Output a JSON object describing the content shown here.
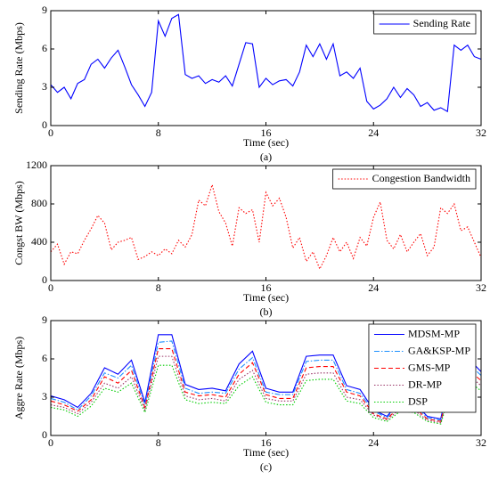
{
  "chart_data": [
    {
      "type": "line",
      "xlabel": "Time (sec)",
      "ylabel": "Sending Rate (Mbps)",
      "caption": "(a)",
      "x": [
        0,
        0.5,
        1,
        1.5,
        2,
        2.5,
        3,
        3.5,
        4,
        4.5,
        5,
        5.5,
        6,
        6.5,
        7,
        7.5,
        8,
        8.5,
        9,
        9.5,
        10,
        10.5,
        11,
        11.5,
        12,
        12.5,
        13,
        13.5,
        14,
        14.5,
        15,
        15.5,
        16,
        16.5,
        17,
        17.5,
        18,
        18.5,
        19,
        19.5,
        20,
        20.5,
        21,
        21.5,
        22,
        22.5,
        23,
        23.5,
        24,
        24.5,
        25,
        25.5,
        26,
        26.5,
        27,
        27.5,
        28,
        28.5,
        29,
        29.5,
        30,
        30.5,
        31,
        31.5,
        32
      ],
      "series": [
        {
          "name": "Sending Rate",
          "color": "#0000ff",
          "style": "solid",
          "values": [
            3.2,
            2.6,
            3.0,
            2.1,
            3.3,
            3.6,
            4.8,
            5.2,
            4.5,
            5.3,
            5.9,
            4.6,
            3.2,
            2.4,
            1.5,
            2.6,
            8.2,
            7.0,
            8.4,
            8.7,
            4.0,
            3.7,
            3.9,
            3.3,
            3.6,
            3.4,
            3.9,
            3.1,
            4.8,
            6.5,
            6.4,
            3.0,
            3.7,
            3.2,
            3.5,
            3.6,
            3.1,
            4.2,
            6.3,
            5.4,
            6.4,
            5.2,
            6.4,
            3.9,
            4.2,
            3.7,
            4.5,
            1.9,
            1.3,
            1.6,
            2.1,
            3.0,
            2.2,
            2.9,
            2.4,
            1.5,
            1.8,
            1.2,
            1.4,
            1.1,
            6.3,
            5.9,
            6.3,
            5.4,
            5.2
          ]
        }
      ],
      "xlim": [
        0,
        32
      ],
      "xticks": [
        0,
        8,
        16,
        24,
        32
      ],
      "ylim": [
        0,
        9
      ],
      "yticks": [
        0,
        3,
        6,
        9
      ],
      "legend": "upper right"
    },
    {
      "type": "line",
      "xlabel": "Time (sec)",
      "ylabel": "Congst BW (Mbps)",
      "caption": "(b)",
      "x": [
        0,
        0.5,
        1,
        1.5,
        2,
        2.5,
        3,
        3.5,
        4,
        4.5,
        5,
        5.5,
        6,
        6.5,
        7,
        7.5,
        8,
        8.5,
        9,
        9.5,
        10,
        10.5,
        11,
        11.5,
        12,
        12.5,
        13,
        13.5,
        14,
        14.5,
        15,
        15.5,
        16,
        16.5,
        17,
        17.5,
        18,
        18.5,
        19,
        19.5,
        20,
        20.5,
        21,
        21.5,
        22,
        22.5,
        23,
        23.5,
        24,
        24.5,
        25,
        25.5,
        26,
        26.5,
        27,
        27.5,
        28,
        28.5,
        29,
        29.5,
        30,
        30.5,
        31,
        31.5,
        32
      ],
      "series": [
        {
          "name": "Congestion Bandwidth",
          "color": "#ff0000",
          "style": "dotted",
          "values": [
            300,
            380,
            170,
            300,
            280,
            420,
            540,
            680,
            600,
            320,
            400,
            420,
            450,
            220,
            250,
            300,
            260,
            330,
            280,
            420,
            350,
            480,
            840,
            780,
            1000,
            720,
            600,
            360,
            760,
            700,
            740,
            400,
            920,
            780,
            860,
            660,
            340,
            450,
            200,
            300,
            120,
            260,
            450,
            300,
            400,
            230,
            450,
            360,
            660,
            820,
            420,
            330,
            480,
            300,
            400,
            490,
            260,
            350,
            760,
            700,
            800,
            520,
            560,
            400,
            240
          ]
        }
      ],
      "xlim": [
        0,
        32
      ],
      "xticks": [
        0,
        8,
        16,
        24,
        32
      ],
      "ylim": [
        0,
        1200
      ],
      "yticks": [
        0,
        400,
        800,
        1200
      ],
      "legend": "upper right"
    },
    {
      "type": "line",
      "xlabel": "Time (sec)",
      "ylabel": "Aggre Rate (Mbps)",
      "caption": "(c)",
      "x": [
        0,
        1,
        2,
        3,
        4,
        5,
        6,
        7,
        8,
        9,
        10,
        11,
        12,
        13,
        14,
        15,
        16,
        17,
        18,
        19,
        20,
        21,
        22,
        23,
        24,
        25,
        26,
        27,
        28,
        29,
        30,
        31,
        32
      ],
      "series": [
        {
          "name": "MDSM-MP",
          "color": "#0000ff",
          "style": "solid",
          "values": [
            3.1,
            2.8,
            2.2,
            3.3,
            5.3,
            4.8,
            5.9,
            2.6,
            7.9,
            7.9,
            4.0,
            3.6,
            3.7,
            3.5,
            5.6,
            6.6,
            3.7,
            3.4,
            3.4,
            6.2,
            6.3,
            6.3,
            3.9,
            3.6,
            2.0,
            1.5,
            2.7,
            2.6,
            1.5,
            1.3,
            6.3,
            6.1,
            5.0
          ]
        },
        {
          "name": "GA&KSP-MP",
          "color": "#1e90ff",
          "style": "dashdot",
          "values": [
            2.9,
            2.6,
            2.0,
            3.1,
            4.9,
            4.5,
            5.5,
            2.4,
            7.3,
            7.4,
            3.7,
            3.3,
            3.4,
            3.3,
            5.2,
            6.1,
            3.4,
            3.2,
            3.2,
            5.8,
            5.9,
            5.9,
            3.6,
            3.3,
            1.9,
            1.4,
            2.5,
            2.4,
            1.4,
            1.2,
            5.9,
            5.7,
            4.7
          ]
        },
        {
          "name": "GMS-MP",
          "color": "#ff0000",
          "style": "dashed",
          "values": [
            2.7,
            2.4,
            1.9,
            2.8,
            4.6,
            4.1,
            5.1,
            2.2,
            6.8,
            6.8,
            3.4,
            3.1,
            3.2,
            3.0,
            4.8,
            5.7,
            3.2,
            2.9,
            2.9,
            5.3,
            5.4,
            5.4,
            3.4,
            3.1,
            1.7,
            1.3,
            2.3,
            2.2,
            1.3,
            1.1,
            5.4,
            5.2,
            4.3
          ]
        },
        {
          "name": "DR-MP",
          "color": "#993366",
          "style": "dotted",
          "values": [
            2.4,
            2.2,
            1.7,
            2.6,
            4.1,
            3.7,
            4.6,
            2.0,
            6.2,
            6.2,
            3.1,
            2.8,
            2.9,
            2.7,
            4.4,
            5.1,
            2.9,
            2.7,
            2.7,
            4.8,
            4.9,
            4.9,
            3.0,
            2.8,
            1.6,
            1.2,
            2.1,
            2.0,
            1.2,
            1.0,
            4.9,
            4.8,
            3.9
          ]
        },
        {
          "name": "DSP",
          "color": "#00cc00",
          "style": "dotted",
          "values": [
            2.2,
            2.0,
            1.5,
            2.3,
            3.7,
            3.4,
            4.1,
            1.8,
            5.5,
            5.5,
            2.8,
            2.5,
            2.6,
            2.5,
            3.9,
            4.6,
            2.6,
            2.4,
            2.4,
            4.3,
            4.4,
            4.4,
            2.7,
            2.5,
            1.4,
            1.1,
            1.9,
            1.8,
            1.1,
            0.9,
            4.4,
            4.3,
            3.5
          ]
        }
      ],
      "xlim": [
        0,
        32
      ],
      "xticks": [
        0,
        8,
        16,
        24,
        32
      ],
      "ylim": [
        0,
        9
      ],
      "yticks": [
        0,
        3,
        6,
        9
      ],
      "legend": "upper right"
    }
  ]
}
